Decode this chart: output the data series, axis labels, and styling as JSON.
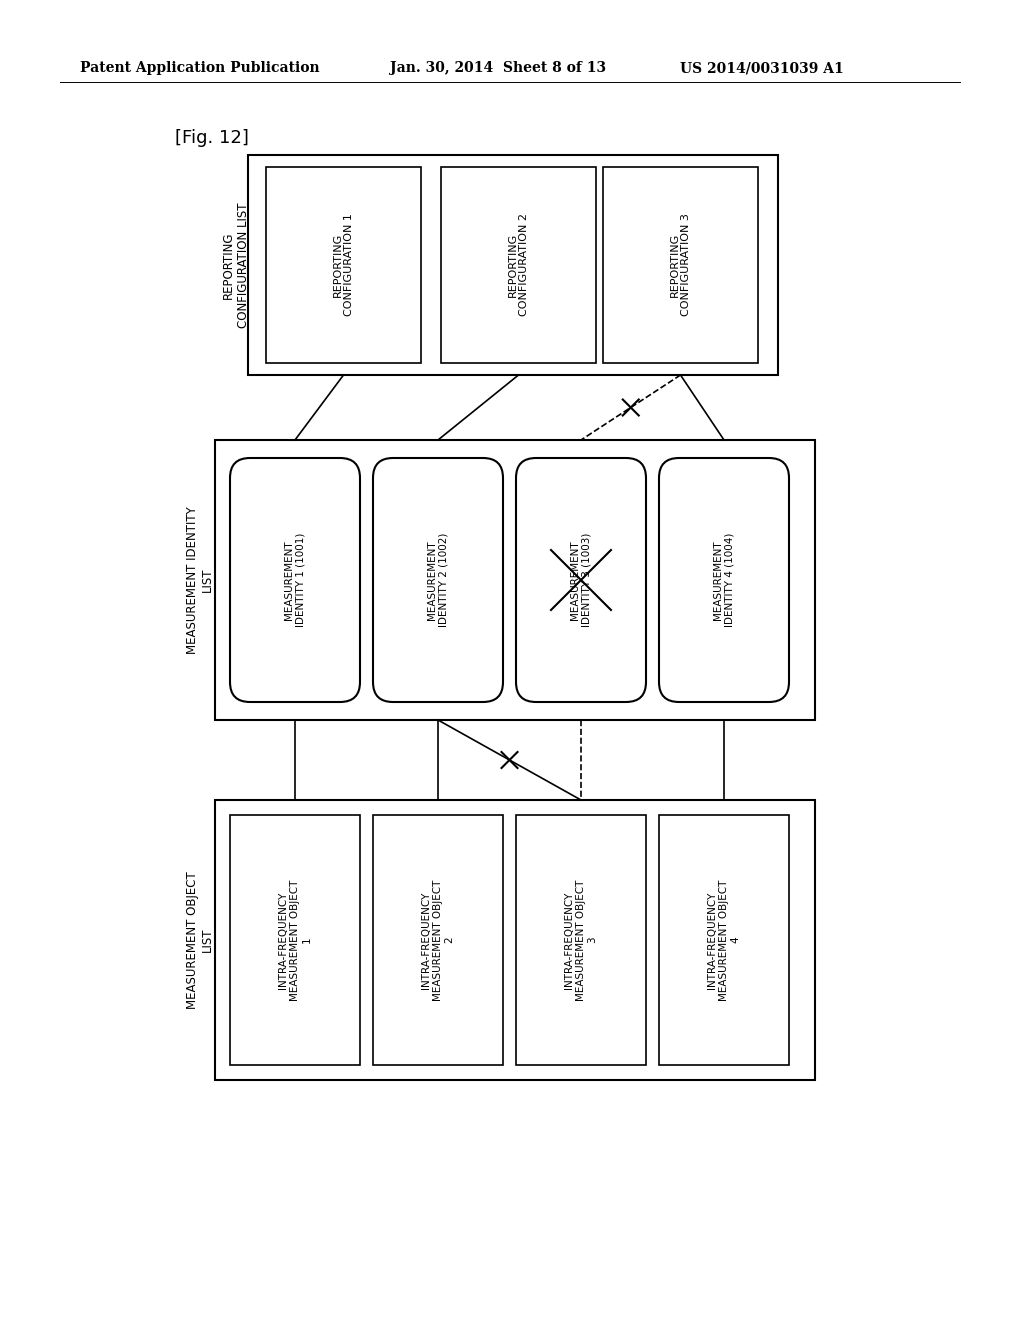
{
  "title_header_left": "Patent Application Publication",
  "title_header_mid": "Jan. 30, 2014  Sheet 8 of 13",
  "title_header_right": "US 2014/0031039 A1",
  "fig_label": "[Fig. 12]",
  "bg_color": "#ffffff",
  "box_color": "#000000",
  "reporting_config_list_label": "REPORTING\nCONFIGURATION LIST",
  "reporting_configs": [
    "REPORTING\nCONFIGURATION 1",
    "REPORTING\nCONFIGURATION 2",
    "REPORTING\nCONFIGURATION 3"
  ],
  "measurement_identity_list_label": "MEASUREMENT IDENTITY\nLIST",
  "measurement_identities": [
    "MEASUREMENT\nIDENTITY 1 (1001)",
    "MEASUREMENT\nIDENTITY 2 (1002)",
    "MEASUREMENT\nIDENTITY 3 (1003)",
    "MEASUREMENT\nIDENTITY 4 (1004)"
  ],
  "measurement_object_list_label": "MEASUREMENT OBJECT\nLIST",
  "measurement_objects": [
    "INTRA-FREQUENCY\nMEASUREMENT OBJECT\n1",
    "INTRA-FREQUENCY\nMEASUREMENT OBJECT\n2",
    "INTRA-FREQUENCY\nMEASUREMENT OBJECT\n3",
    "INTRA-FREQUENCY\nMEASUREMENT OBJECT\n4"
  ]
}
